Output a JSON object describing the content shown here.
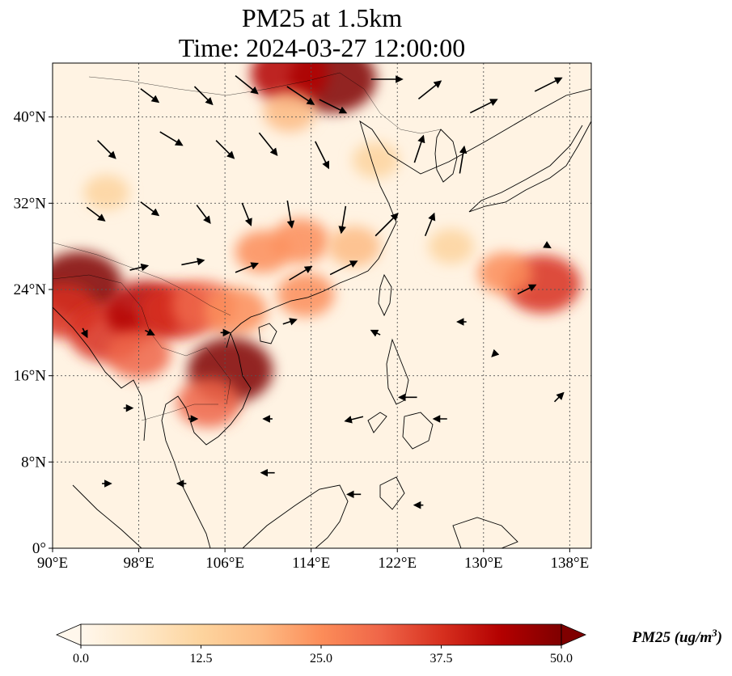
{
  "title_line1": "PM25 at 1.5km",
  "title_line2": "Time: 2024-03-27 12:00:00",
  "map": {
    "lon_range": [
      90,
      140
    ],
    "lat_range": [
      0,
      45
    ],
    "lon_ticks": [
      {
        "value": 90,
        "label": "90°E"
      },
      {
        "value": 98,
        "label": "98°E"
      },
      {
        "value": 106,
        "label": "106°E"
      },
      {
        "value": 114,
        "label": "114°E"
      },
      {
        "value": 122,
        "label": "122°E"
      },
      {
        "value": 130,
        "label": "130°E"
      },
      {
        "value": 138,
        "label": "138°E"
      }
    ],
    "lat_ticks": [
      {
        "value": 0,
        "label": "0°"
      },
      {
        "value": 8,
        "label": "8°N"
      },
      {
        "value": 16,
        "label": "16°N"
      },
      {
        "value": 24,
        "label": "24°N"
      },
      {
        "value": 32,
        "label": "32°N"
      },
      {
        "value": 40,
        "label": "40°N"
      }
    ],
    "gridlines": true,
    "colormap": "OrRd",
    "hotspots": [
      {
        "lon": 116,
        "lat": 43.5,
        "value": 50
      },
      {
        "lon": 112,
        "lat": 44,
        "value": 42
      },
      {
        "lon": 92.5,
        "lat": 24.5,
        "value": 48
      },
      {
        "lon": 91,
        "lat": 22,
        "value": 35
      },
      {
        "lon": 95,
        "lat": 20,
        "value": 40
      },
      {
        "lon": 98.5,
        "lat": 22,
        "value": 42
      },
      {
        "lon": 101.5,
        "lat": 22,
        "value": 38
      },
      {
        "lon": 104,
        "lat": 22.5,
        "value": 30
      },
      {
        "lon": 107,
        "lat": 22,
        "value": 28
      },
      {
        "lon": 106.5,
        "lat": 16.5,
        "value": 48
      },
      {
        "lon": 104.5,
        "lat": 13.5,
        "value": 30
      },
      {
        "lon": 98,
        "lat": 18,
        "value": 30
      },
      {
        "lon": 113,
        "lat": 28.5,
        "value": 25
      },
      {
        "lon": 109.5,
        "lat": 27.5,
        "value": 22
      },
      {
        "lon": 118,
        "lat": 28,
        "value": 20
      },
      {
        "lon": 112,
        "lat": 40.5,
        "value": 20
      },
      {
        "lon": 113.5,
        "lat": 23.5,
        "value": 24
      },
      {
        "lon": 135.5,
        "lat": 24.5,
        "value": 40
      },
      {
        "lon": 132,
        "lat": 25.5,
        "value": 22
      },
      {
        "lon": 95,
        "lat": 33,
        "value": 14
      },
      {
        "lon": 120,
        "lat": 36,
        "value": 15
      },
      {
        "lon": 127,
        "lat": 28,
        "value": 14
      }
    ],
    "wind_vectors": [
      {
        "lon": 99,
        "lat": 42,
        "u": 2,
        "v": -1.5
      },
      {
        "lon": 104,
        "lat": 42,
        "u": 2,
        "v": -2
      },
      {
        "lon": 108,
        "lat": 43,
        "u": 2.5,
        "v": -2
      },
      {
        "lon": 113,
        "lat": 42,
        "u": 3,
        "v": -2
      },
      {
        "lon": 116,
        "lat": 41,
        "u": 3,
        "v": -1.5
      },
      {
        "lon": 121,
        "lat": 43.5,
        "u": 3.5,
        "v": 0
      },
      {
        "lon": 125,
        "lat": 42.5,
        "u": 2.5,
        "v": 2
      },
      {
        "lon": 130,
        "lat": 41,
        "u": 3,
        "v": 1.5
      },
      {
        "lon": 136,
        "lat": 43,
        "u": 3,
        "v": 1.5
      },
      {
        "lon": 95,
        "lat": 37,
        "u": 2,
        "v": -2
      },
      {
        "lon": 101,
        "lat": 38,
        "u": 2.5,
        "v": -1.5
      },
      {
        "lon": 106,
        "lat": 37,
        "u": 2,
        "v": -2
      },
      {
        "lon": 110,
        "lat": 37.5,
        "u": 2,
        "v": -2.5
      },
      {
        "lon": 115,
        "lat": 36.5,
        "u": 1.5,
        "v": -3
      },
      {
        "lon": 124,
        "lat": 37,
        "u": 1,
        "v": 3
      },
      {
        "lon": 128,
        "lat": 36,
        "u": 0.5,
        "v": 3
      },
      {
        "lon": 94,
        "lat": 31,
        "u": 2,
        "v": -1.5
      },
      {
        "lon": 99,
        "lat": 31.5,
        "u": 2,
        "v": -1.5
      },
      {
        "lon": 104,
        "lat": 31,
        "u": 1.5,
        "v": -2
      },
      {
        "lon": 108,
        "lat": 31,
        "u": 1,
        "v": -2.5
      },
      {
        "lon": 112,
        "lat": 31,
        "u": 0.5,
        "v": -3
      },
      {
        "lon": 117,
        "lat": 30.5,
        "u": -0.5,
        "v": -3
      },
      {
        "lon": 121,
        "lat": 30,
        "u": 2.5,
        "v": 2.5
      },
      {
        "lon": 125,
        "lat": 30,
        "u": 1,
        "v": 2.5
      },
      {
        "lon": 98,
        "lat": 26,
        "u": 2,
        "v": 0.5
      },
      {
        "lon": 103,
        "lat": 26.5,
        "u": 2.5,
        "v": 0.5
      },
      {
        "lon": 108,
        "lat": 26,
        "u": 2.5,
        "v": 1
      },
      {
        "lon": 113,
        "lat": 25.5,
        "u": 2.5,
        "v": 1.5
      },
      {
        "lon": 117,
        "lat": 26,
        "u": 3,
        "v": 1.5
      },
      {
        "lon": 93,
        "lat": 20,
        "u": 0.5,
        "v": -1
      },
      {
        "lon": 99,
        "lat": 20,
        "u": 1,
        "v": -0.5
      },
      {
        "lon": 106,
        "lat": 20,
        "u": 1,
        "v": 0
      },
      {
        "lon": 112,
        "lat": 21,
        "u": 1.5,
        "v": 0.5
      },
      {
        "lon": 120,
        "lat": 20,
        "u": -1,
        "v": 0.5
      },
      {
        "lon": 128,
        "lat": 21,
        "u": -1,
        "v": 0
      },
      {
        "lon": 97,
        "lat": 13,
        "u": 1,
        "v": 0
      },
      {
        "lon": 103,
        "lat": 12,
        "u": 1,
        "v": 0
      },
      {
        "lon": 110,
        "lat": 12,
        "u": -1,
        "v": 0
      },
      {
        "lon": 118,
        "lat": 12,
        "u": -2,
        "v": -0.5
      },
      {
        "lon": 123,
        "lat": 14,
        "u": -2,
        "v": 0
      },
      {
        "lon": 126,
        "lat": 12,
        "u": -1.5,
        "v": 0
      },
      {
        "lon": 95,
        "lat": 6,
        "u": 1,
        "v": 0
      },
      {
        "lon": 102,
        "lat": 6,
        "u": -1,
        "v": 0
      },
      {
        "lon": 110,
        "lat": 7,
        "u": -1.5,
        "v": 0
      },
      {
        "lon": 118,
        "lat": 5,
        "u": -1.5,
        "v": 0
      },
      {
        "lon": 124,
        "lat": 4,
        "u": -1,
        "v": 0
      },
      {
        "lon": 131,
        "lat": 18,
        "u": -0.5,
        "v": -0.5
      },
      {
        "lon": 136,
        "lat": 28,
        "u": 0.5,
        "v": -0.3
      },
      {
        "lon": 134,
        "lat": 24,
        "u": 2,
        "v": 1
      },
      {
        "lon": 137,
        "lat": 14,
        "u": 1,
        "v": 1
      }
    ]
  },
  "colorbar": {
    "min": 0.0,
    "max": 50.0,
    "ticks": [
      "0.0",
      "12.5",
      "25.0",
      "37.5",
      "50.0"
    ],
    "tick_values": [
      0,
      12.5,
      25,
      37.5,
      50
    ],
    "extend": "both",
    "label": "PM25 (ug/m",
    "label_superscript": "3",
    "label_close": ")"
  }
}
